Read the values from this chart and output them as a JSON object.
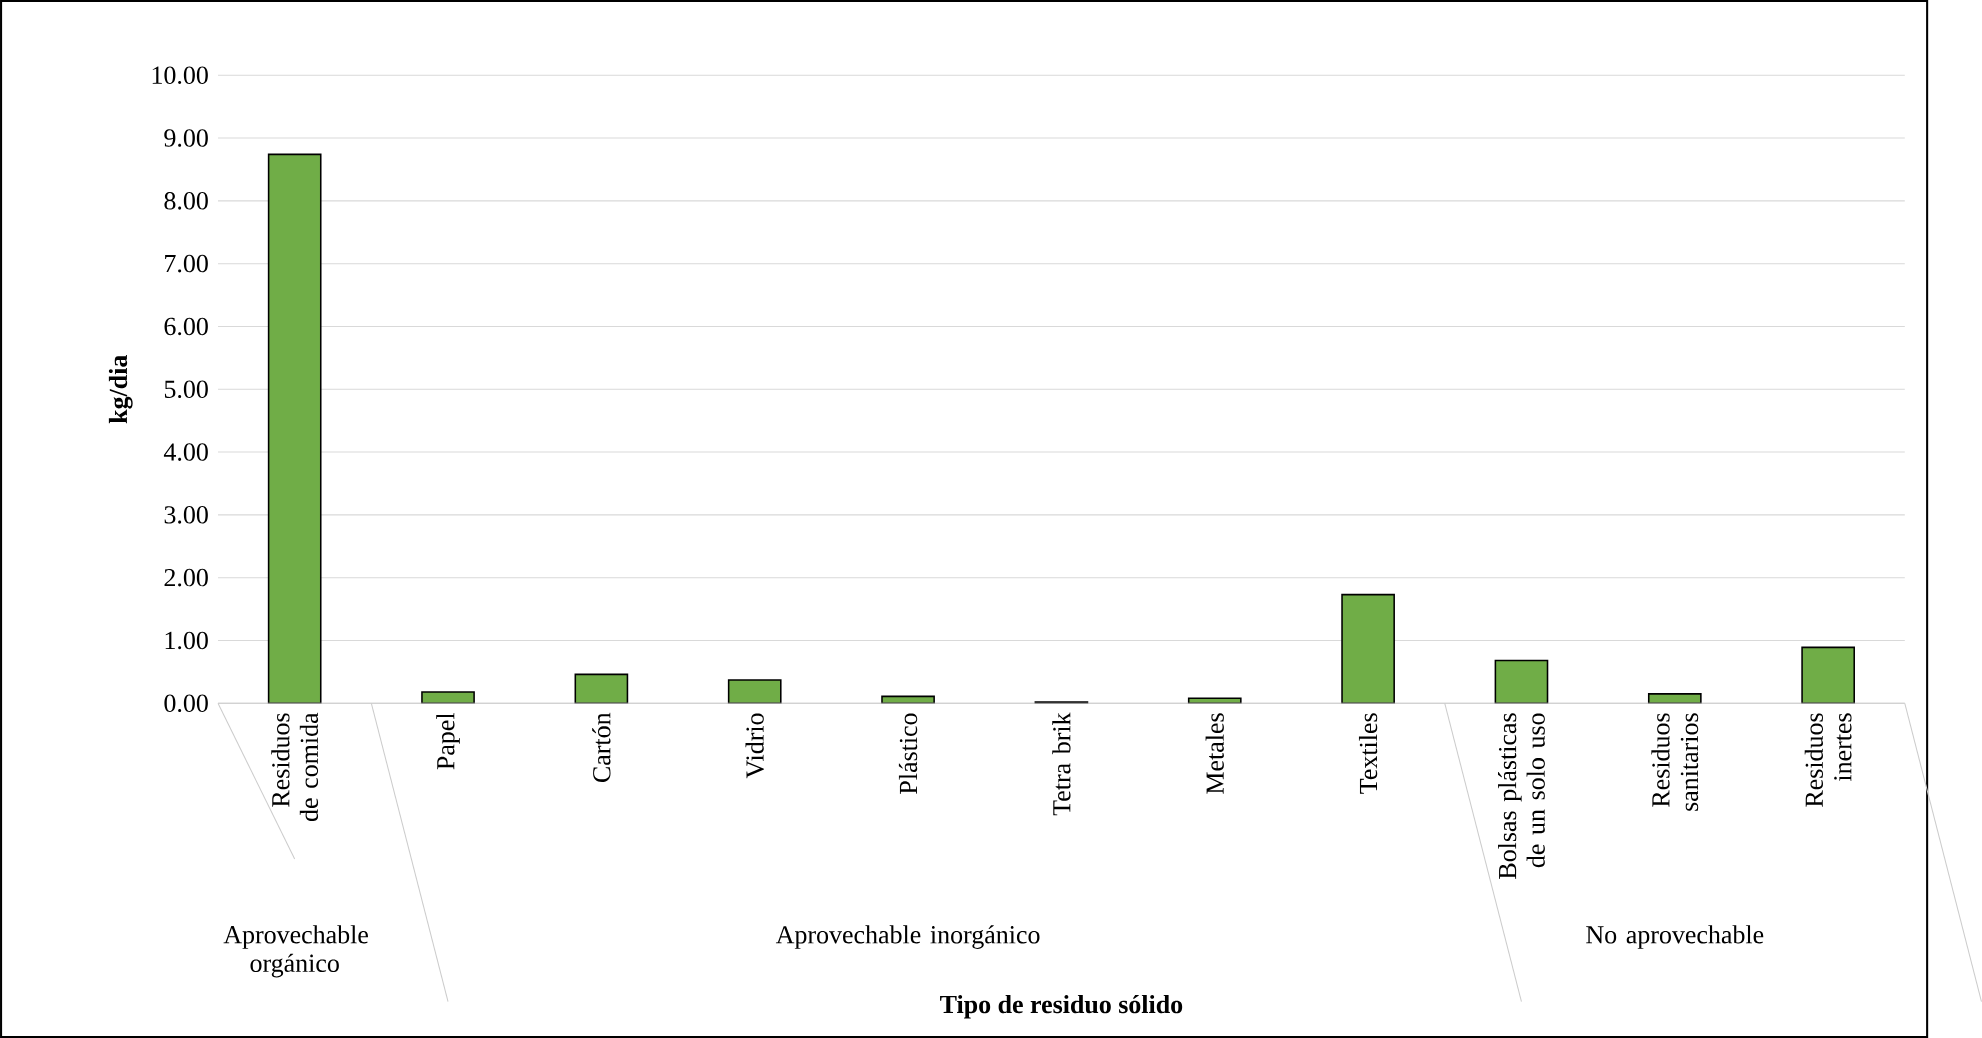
{
  "chart_data": {
    "type": "bar",
    "xlabel": "Tipo de residuo sólido",
    "ylabel": "kg/dia",
    "categories": [
      "Residuos de comida",
      "Papel",
      "Cartón",
      "Vidrio",
      "Plástico",
      "Tetra brik",
      "Metales",
      "Textiles",
      "Bolsas plásticas de un solo uso",
      "Residuos sanitarios",
      "Residuos inertes"
    ],
    "values": [
      8.74,
      0.18,
      0.46,
      0.37,
      0.11,
      0.02,
      0.08,
      1.73,
      0.68,
      0.15,
      0.89
    ],
    "color": "#70ad47",
    "ylim": [
      0,
      10
    ],
    "yticks": [
      {
        "value": 0,
        "label": "0.00"
      },
      {
        "value": 1,
        "label": "1.00"
      },
      {
        "value": 2,
        "label": "2.00"
      },
      {
        "value": 3,
        "label": "3.00"
      },
      {
        "value": 4,
        "label": "4.00"
      },
      {
        "value": 5,
        "label": "5.00"
      },
      {
        "value": 6,
        "label": "6.00"
      },
      {
        "value": 7,
        "label": "7.00"
      },
      {
        "value": 8,
        "label": "8.00"
      },
      {
        "value": 9,
        "label": "9.00"
      },
      {
        "value": 10,
        "label": "10.00"
      }
    ],
    "grid": "y",
    "annotations": [
      "Aprovechable orgánico",
      "Aprovechable inorgánico",
      "No aprovechable"
    ]
  }
}
